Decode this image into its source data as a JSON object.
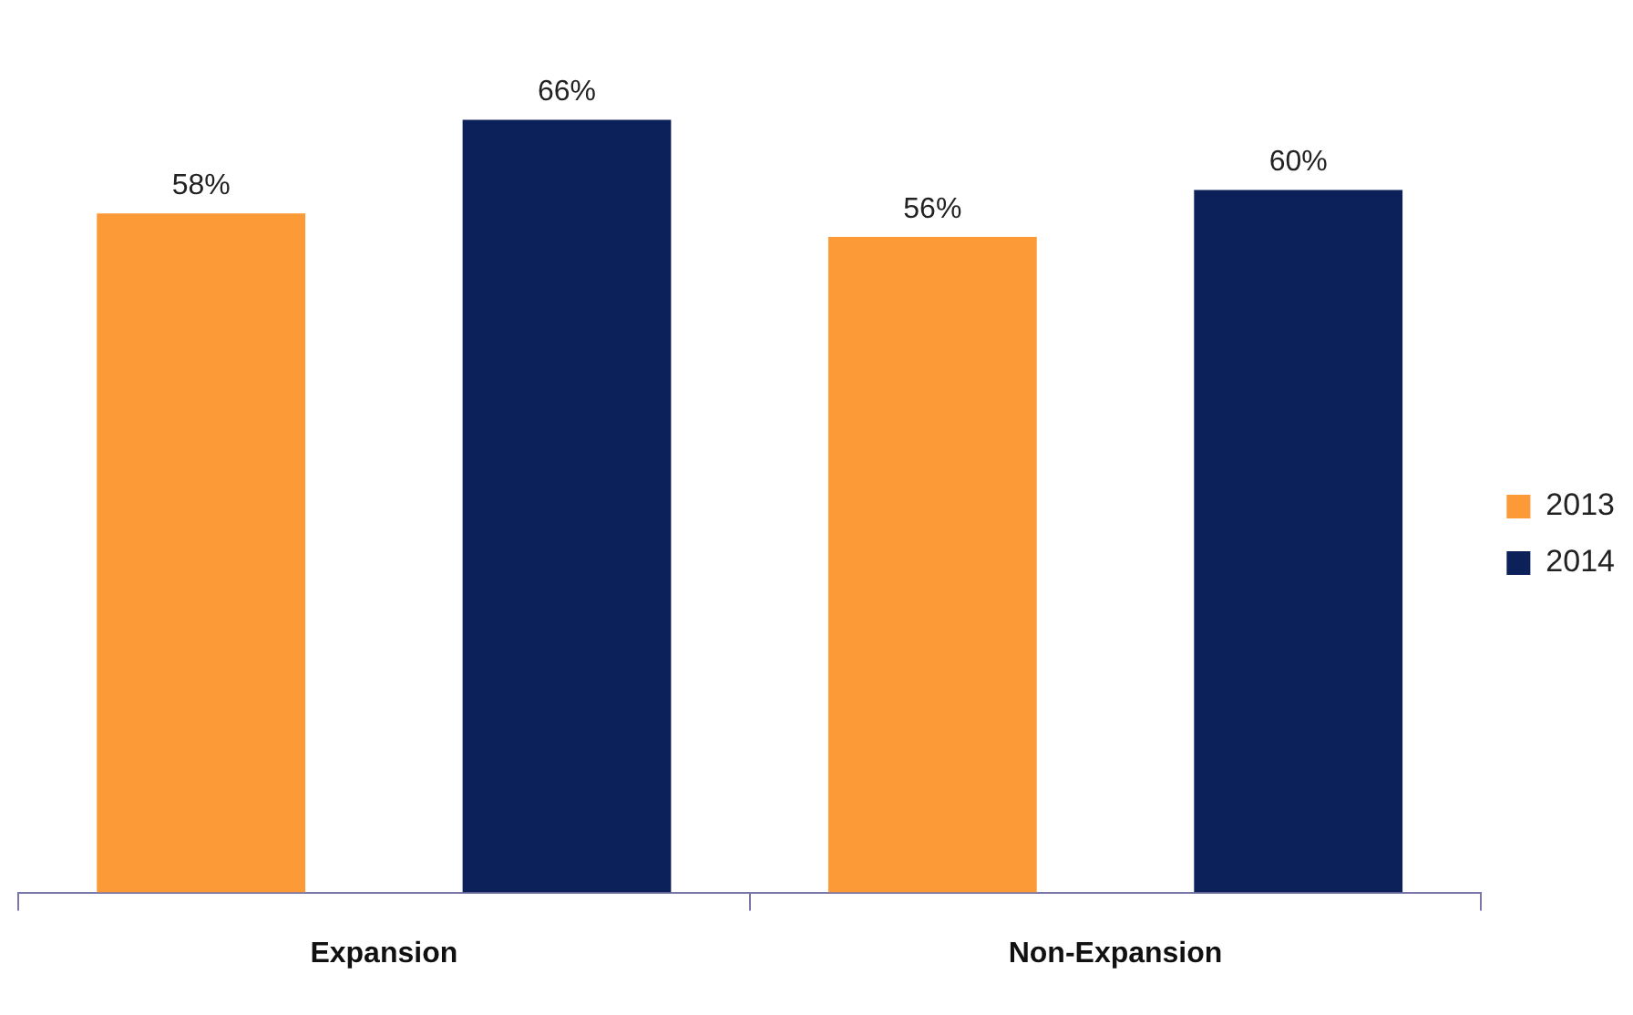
{
  "chart_data": {
    "type": "bar",
    "categories": [
      "Expansion",
      "Non-Expansion"
    ],
    "series": [
      {
        "name": "2013",
        "color": "#fd9a38",
        "values": [
          58,
          56
        ],
        "value_labels": [
          "58%",
          "56%"
        ]
      },
      {
        "name": "2014",
        "color": "#0c2059",
        "values": [
          66,
          60
        ],
        "value_labels": [
          "66%",
          "60%"
        ]
      }
    ],
    "tick_labels": "x",
    "grid": false,
    "legend": "right"
  }
}
